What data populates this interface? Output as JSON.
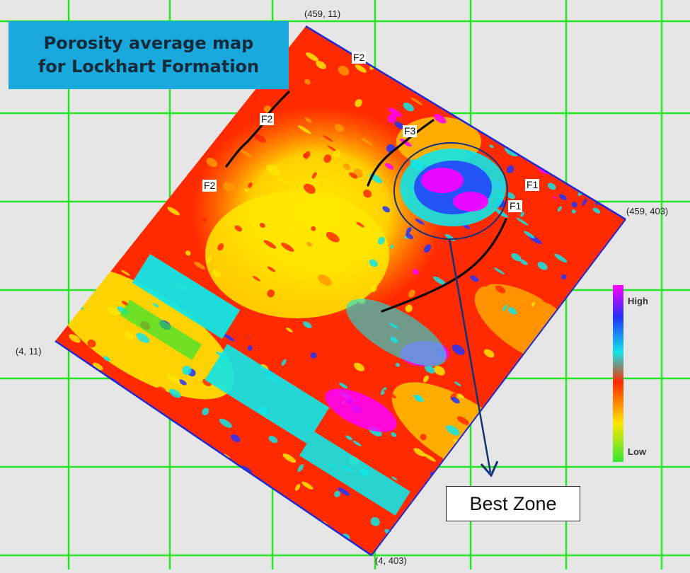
{
  "title": {
    "line1": "Porosity average map",
    "line2": "for Lockhart Formation"
  },
  "corners": {
    "top": "(459, 11)",
    "right": "(459, 403)",
    "left": "(4, 11)",
    "bottom": "(4, 403)"
  },
  "faults": [
    "F2",
    "F2",
    "F2",
    "F3",
    "F1",
    "F1"
  ],
  "legend": {
    "high": "High",
    "low": "Low",
    "colors": [
      "#ff00ff",
      "#2233ff",
      "#11e6e6",
      "#ff2a00",
      "#ffe600",
      "#33e633"
    ]
  },
  "annotation": {
    "best_zone": "Best Zone"
  },
  "colors": {
    "grid": "#22e622",
    "boundary": "#1d2bd6",
    "background": "#e6e6e6",
    "title_box": "#1aa9dc",
    "arrow": "#12327a"
  }
}
